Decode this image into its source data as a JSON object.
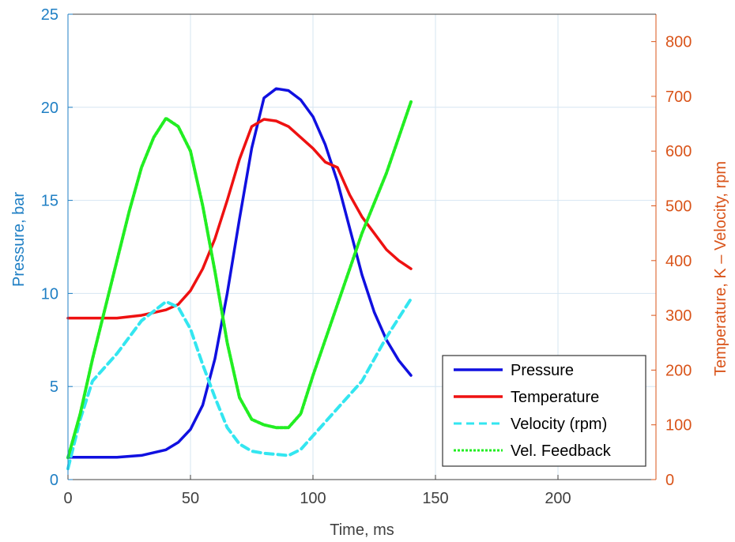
{
  "chart_data": {
    "type": "line",
    "title": "",
    "xlabel": "Time, ms",
    "ylabel_left": "Pressure, bar",
    "ylabel_right": "Temperature, K  –  Velocity, rpm",
    "xlim": [
      0,
      240
    ],
    "ylim_left": [
      0,
      25
    ],
    "ylim_right": [
      0,
      850
    ],
    "x_ticks": [
      0,
      50,
      100,
      150,
      200
    ],
    "y_ticks_left": [
      0,
      5,
      10,
      15,
      20,
      25
    ],
    "y_ticks_right": [
      0,
      100,
      200,
      300,
      400,
      500,
      600,
      700,
      800
    ],
    "grid": true,
    "legend_position": "bottom-right",
    "colors": {
      "left_axis": "#1f7fc4",
      "right_axis": "#d9541a",
      "grid": "#d6e6f2"
    },
    "series": [
      {
        "name": "Pressure",
        "axis": "left",
        "color": "#1010e0",
        "style": "solid",
        "x": [
          0,
          10,
          20,
          30,
          40,
          45,
          50,
          55,
          60,
          65,
          70,
          75,
          80,
          85,
          90,
          95,
          100,
          105,
          110,
          115,
          120,
          125,
          130,
          135,
          140
        ],
        "y": [
          1.2,
          1.2,
          1.2,
          1.3,
          1.6,
          2.0,
          2.7,
          4.0,
          6.5,
          10.0,
          14.0,
          17.8,
          20.5,
          21.0,
          20.9,
          20.4,
          19.5,
          18.0,
          16.0,
          13.5,
          11.0,
          9.0,
          7.5,
          6.4,
          5.6
        ]
      },
      {
        "name": "Temperature",
        "axis": "right",
        "color": "#ee1111",
        "style": "solid",
        "x": [
          0,
          10,
          20,
          30,
          40,
          45,
          50,
          55,
          60,
          65,
          70,
          75,
          80,
          85,
          90,
          95,
          100,
          105,
          110,
          115,
          120,
          125,
          130,
          135,
          140
        ],
        "y": [
          295,
          295,
          295,
          300,
          310,
          320,
          345,
          385,
          440,
          510,
          585,
          645,
          658,
          655,
          645,
          625,
          605,
          580,
          570,
          520,
          480,
          450,
          420,
          400,
          385
        ]
      },
      {
        "name": "Velocity (rpm)",
        "axis": "right",
        "color": "#33e6f0",
        "style": "dashed",
        "x": [
          0,
          5,
          10,
          20,
          30,
          40,
          45,
          50,
          55,
          60,
          65,
          70,
          75,
          80,
          90,
          95,
          100,
          110,
          120,
          130,
          140
        ],
        "y": [
          20,
          110,
          180,
          230,
          290,
          325,
          315,
          275,
          210,
          150,
          95,
          65,
          52,
          48,
          44,
          55,
          80,
          130,
          180,
          260,
          330
        ]
      },
      {
        "name": "Vel. Feedback",
        "axis": "right",
        "color": "#22ee22",
        "style": "dotted",
        "x": [
          0,
          5,
          10,
          15,
          20,
          25,
          30,
          35,
          40,
          45,
          50,
          55,
          60,
          65,
          70,
          75,
          80,
          85,
          90,
          95,
          100,
          110,
          120,
          130,
          140
        ],
        "y": [
          40,
          120,
          220,
          310,
          400,
          490,
          570,
          625,
          660,
          645,
          600,
          500,
          380,
          250,
          150,
          110,
          100,
          95,
          95,
          120,
          190,
          320,
          450,
          560,
          690
        ]
      }
    ],
    "legend": [
      {
        "label": "Pressure",
        "color": "#1010e0",
        "style": "solid"
      },
      {
        "label": "Temperature",
        "color": "#ee1111",
        "style": "solid"
      },
      {
        "label": "Velocity (rpm)",
        "color": "#33e6f0",
        "style": "dashed"
      },
      {
        "label": "Vel. Feedback",
        "color": "#22ee22",
        "style": "dotted"
      }
    ]
  }
}
